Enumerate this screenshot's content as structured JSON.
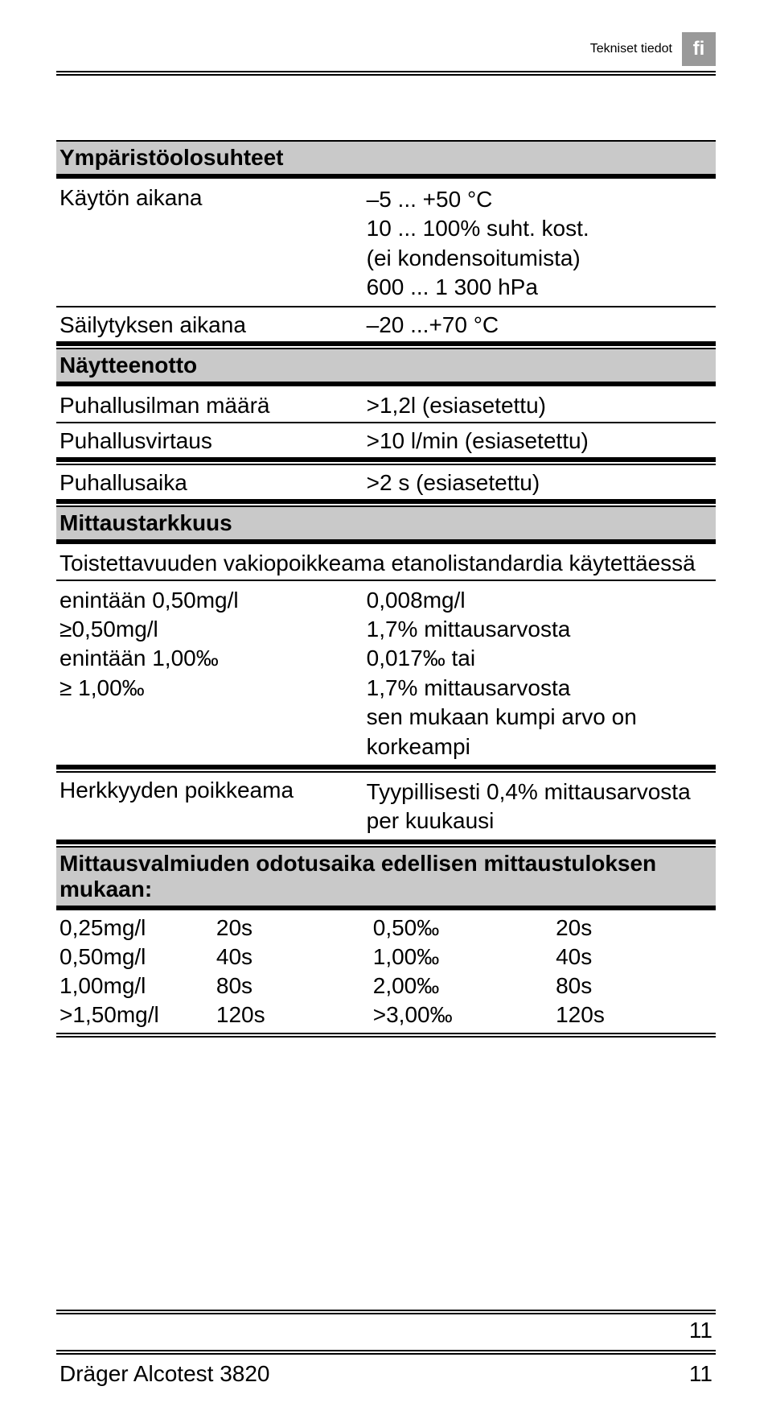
{
  "header": {
    "title": "Tekniset tiedot",
    "lang": "fi"
  },
  "sections": {
    "env": {
      "heading": "Ympäristöolosuhteet",
      "row1_label": "Käytön aikana",
      "row1_val_l1": "–5 ... +50 °C",
      "row1_val_l2": "10 ... 100% suht. kost.",
      "row1_val_l3": "(ei kondensoitumista)",
      "row1_val_l4": "600 ... 1 300 hPa",
      "row2_label": "Säilytyksen aikana",
      "row2_val": "–20 ...+70 °C"
    },
    "sample": {
      "heading": "Näytteenotto",
      "r1_label": "Puhallusilman määrä",
      "r1_val": ">1,2l (esiasetettu)",
      "r2_label": "Puhallusvirtaus",
      "r2_val": ">10 l/min (esiasetettu)",
      "r3_label": "Puhallusaika",
      "r3_val": ">2 s (esiasetettu)"
    },
    "accuracy": {
      "heading": "Mittaustarkkuus",
      "sub": "Toistettavuuden vakiopoikkeama etanolistandardia käytettäessä",
      "a_l1": "enintään 0,50mg/l",
      "a_l2": "≥0,50mg/l",
      "a_l3": "enintään 1,00‰",
      "a_l4": "≥ 1,00‰",
      "a_r1": "0,008mg/l",
      "a_r2": "1,7% mittausarvosta",
      "a_r3": "0,017‰ tai",
      "a_r4": "1,7% mittausarvosta",
      "a_r5": "sen mukaan kumpi arvo on korkeampi",
      "b_label": "Herkkyyden poikkeama",
      "b_r1": "Tyypillisesti 0,4% mittausarvosta",
      "b_r2": "per kuukausi"
    },
    "ready": {
      "heading": "Mittausvalmiuden odotusaika edellisen mittaustuloksen mukaan:",
      "rows": [
        {
          "c1": "0,25mg/l",
          "c2": "20s",
          "c3": "0,50‰",
          "c4": "20s"
        },
        {
          "c1": "0,50mg/l",
          "c2": "40s",
          "c3": "1,00‰",
          "c4": "40s"
        },
        {
          "c1": "1,00mg/l",
          "c2": "80s",
          "c3": "2,00‰",
          "c4": "80s"
        },
        {
          "c1": ">1,50mg/l",
          "c2": "120s",
          "c3": ">3,00‰",
          "c4": "120s"
        }
      ]
    }
  },
  "footer": {
    "page_above": "11",
    "product": "Dräger Alcotest 3820",
    "page": "11"
  },
  "colors": {
    "section_bg": "#c9c9c9",
    "badge_bg": "#999999",
    "text": "#000000",
    "page_bg": "#ffffff"
  },
  "typography": {
    "body_fontsize": 28,
    "font_family": "Arial"
  }
}
